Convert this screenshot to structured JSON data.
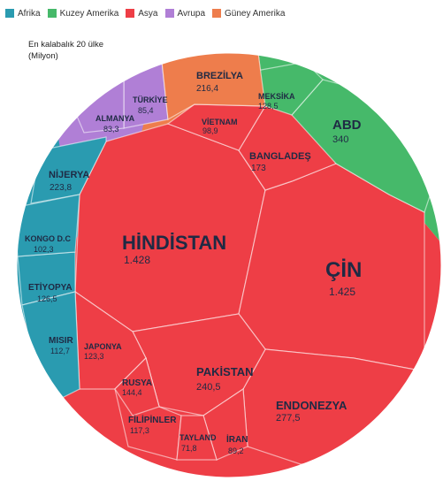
{
  "title": "En kalabalık 20 ülke",
  "unit": "(Milyon)",
  "colors": {
    "Afrika": "#2a9bb0",
    "Kuzey Amerika": "#46b96a",
    "Asya": "#ee3e46",
    "Avrupa": "#b07fd6",
    "Güney Amerika": "#ee7d4c"
  },
  "chart_data": {
    "type": "voronoi-treemap",
    "categories": [
      "Afrika",
      "Kuzey Amerika",
      "Asya",
      "Avrupa",
      "Güney Amerika"
    ],
    "series": [
      {
        "name": "Asya",
        "items": [
          {
            "label": "HİNDİSTAN",
            "value": "1.428"
          },
          {
            "label": "ÇİN",
            "value": "1.425"
          },
          {
            "label": "ENDONEZYA",
            "value": "277,5"
          },
          {
            "label": "PAKİSTAN",
            "value": "240,5"
          },
          {
            "label": "BANGLADEŞ",
            "value": "173"
          },
          {
            "label": "JAPONYA",
            "value": "123,3"
          },
          {
            "label": "FİLİPİNLER",
            "value": "117,3"
          },
          {
            "label": "VİETNAM",
            "value": "98,9"
          },
          {
            "label": "İRAN",
            "value": "89,2"
          },
          {
            "label": "TAYLAND",
            "value": "71,8"
          },
          {
            "label": "RUSYA",
            "value": "144,4"
          }
        ]
      },
      {
        "name": "Kuzey Amerika",
        "items": [
          {
            "label": "ABD",
            "value": "340"
          },
          {
            "label": "MEKSİKA",
            "value": "128,5"
          }
        ]
      },
      {
        "name": "Afrika",
        "items": [
          {
            "label": "NİJERYA",
            "value": "223,8"
          },
          {
            "label": "ETİYOPYA",
            "value": "126,5"
          },
          {
            "label": "MISIR",
            "value": "112,7"
          },
          {
            "label": "KONGO D.C",
            "value": "102,3"
          }
        ]
      },
      {
        "name": "Avrupa",
        "items": [
          {
            "label": "TÜRKİYE",
            "value": "85,4"
          },
          {
            "label": "ALMANYA",
            "value": "83,3"
          }
        ]
      },
      {
        "name": "Güney Amerika",
        "items": [
          {
            "label": "BREZİLYA",
            "value": "216,4"
          }
        ]
      }
    ]
  }
}
